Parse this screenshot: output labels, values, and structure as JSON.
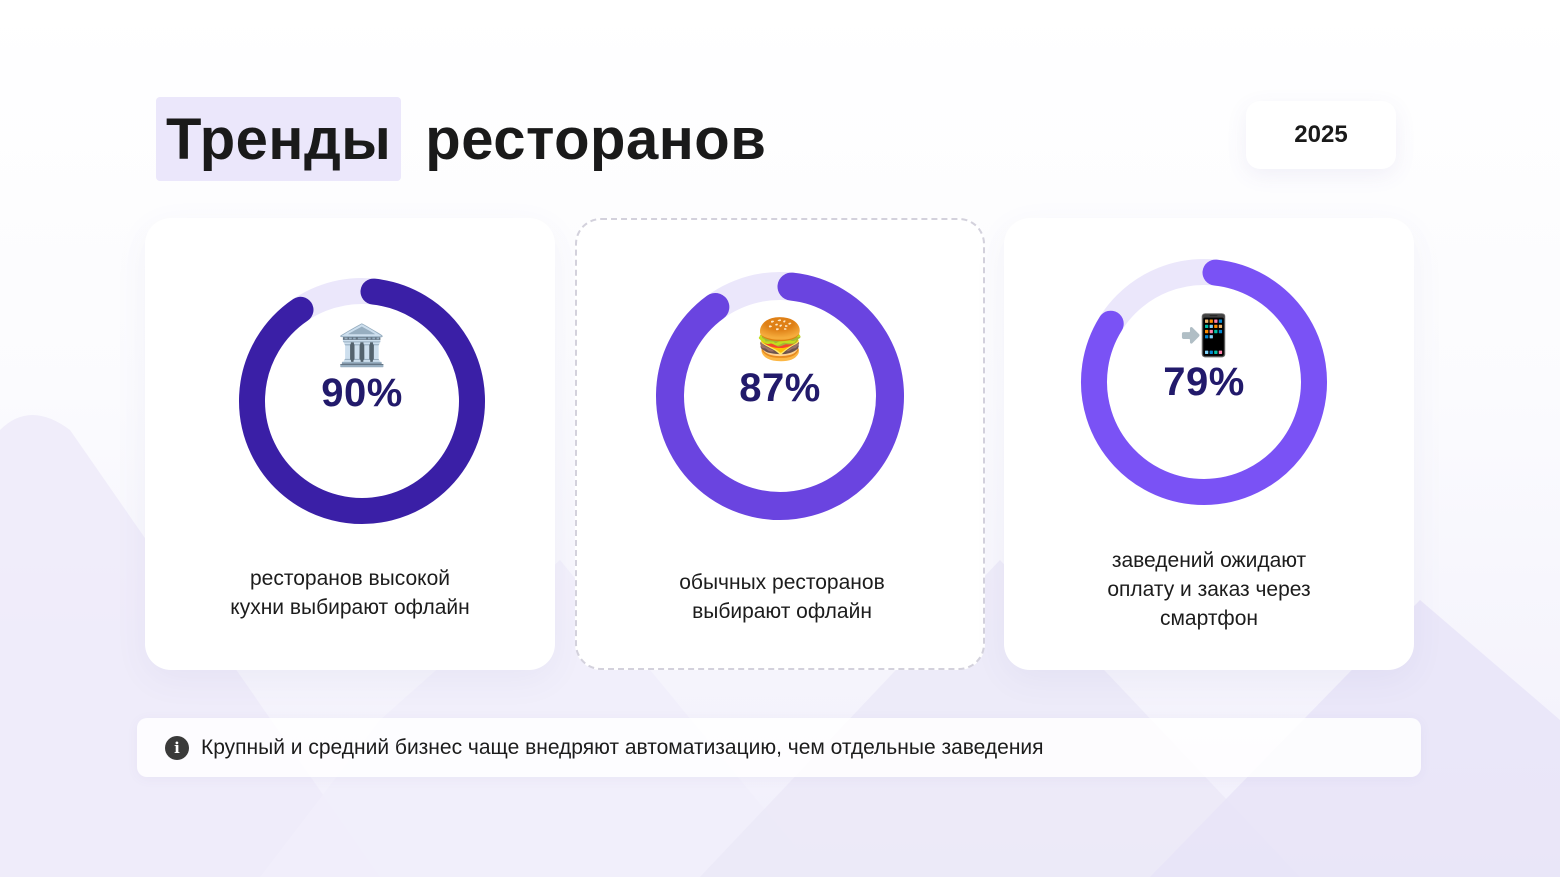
{
  "header": {
    "title_highlight": "Тренды",
    "title_rest": "ресторанов",
    "year": "2025"
  },
  "chart_data": {
    "type": "donut",
    "items": [
      {
        "value": 90,
        "label": "90%",
        "icon": "classical-building-icon",
        "emoji": "🏛️",
        "color": "#3a1fa6",
        "track": "#ebe7fb",
        "caption": [
          "ресторанов высокой",
          "кухни выбирают офлайн"
        ]
      },
      {
        "value": 87,
        "label": "87%",
        "icon": "burger-icon",
        "emoji": "🍔",
        "color": "#6a44e0",
        "track": "#ebe7fb",
        "caption": [
          "обычных ресторанов",
          "выбирают офлайн"
        ]
      },
      {
        "value": 79,
        "label": "79%",
        "icon": "mobile-arrow-icon",
        "emoji": "📲",
        "color": "#7a52f5",
        "track": "#ebe7fb",
        "caption": [
          "заведений ожидают",
          "оплату и заказ через",
          "смартфон"
        ]
      }
    ]
  },
  "info": {
    "icon": "info-icon",
    "text": "Крупный и средний бизнес чаще внедряют автоматизацию, чем отдельные заведения"
  }
}
